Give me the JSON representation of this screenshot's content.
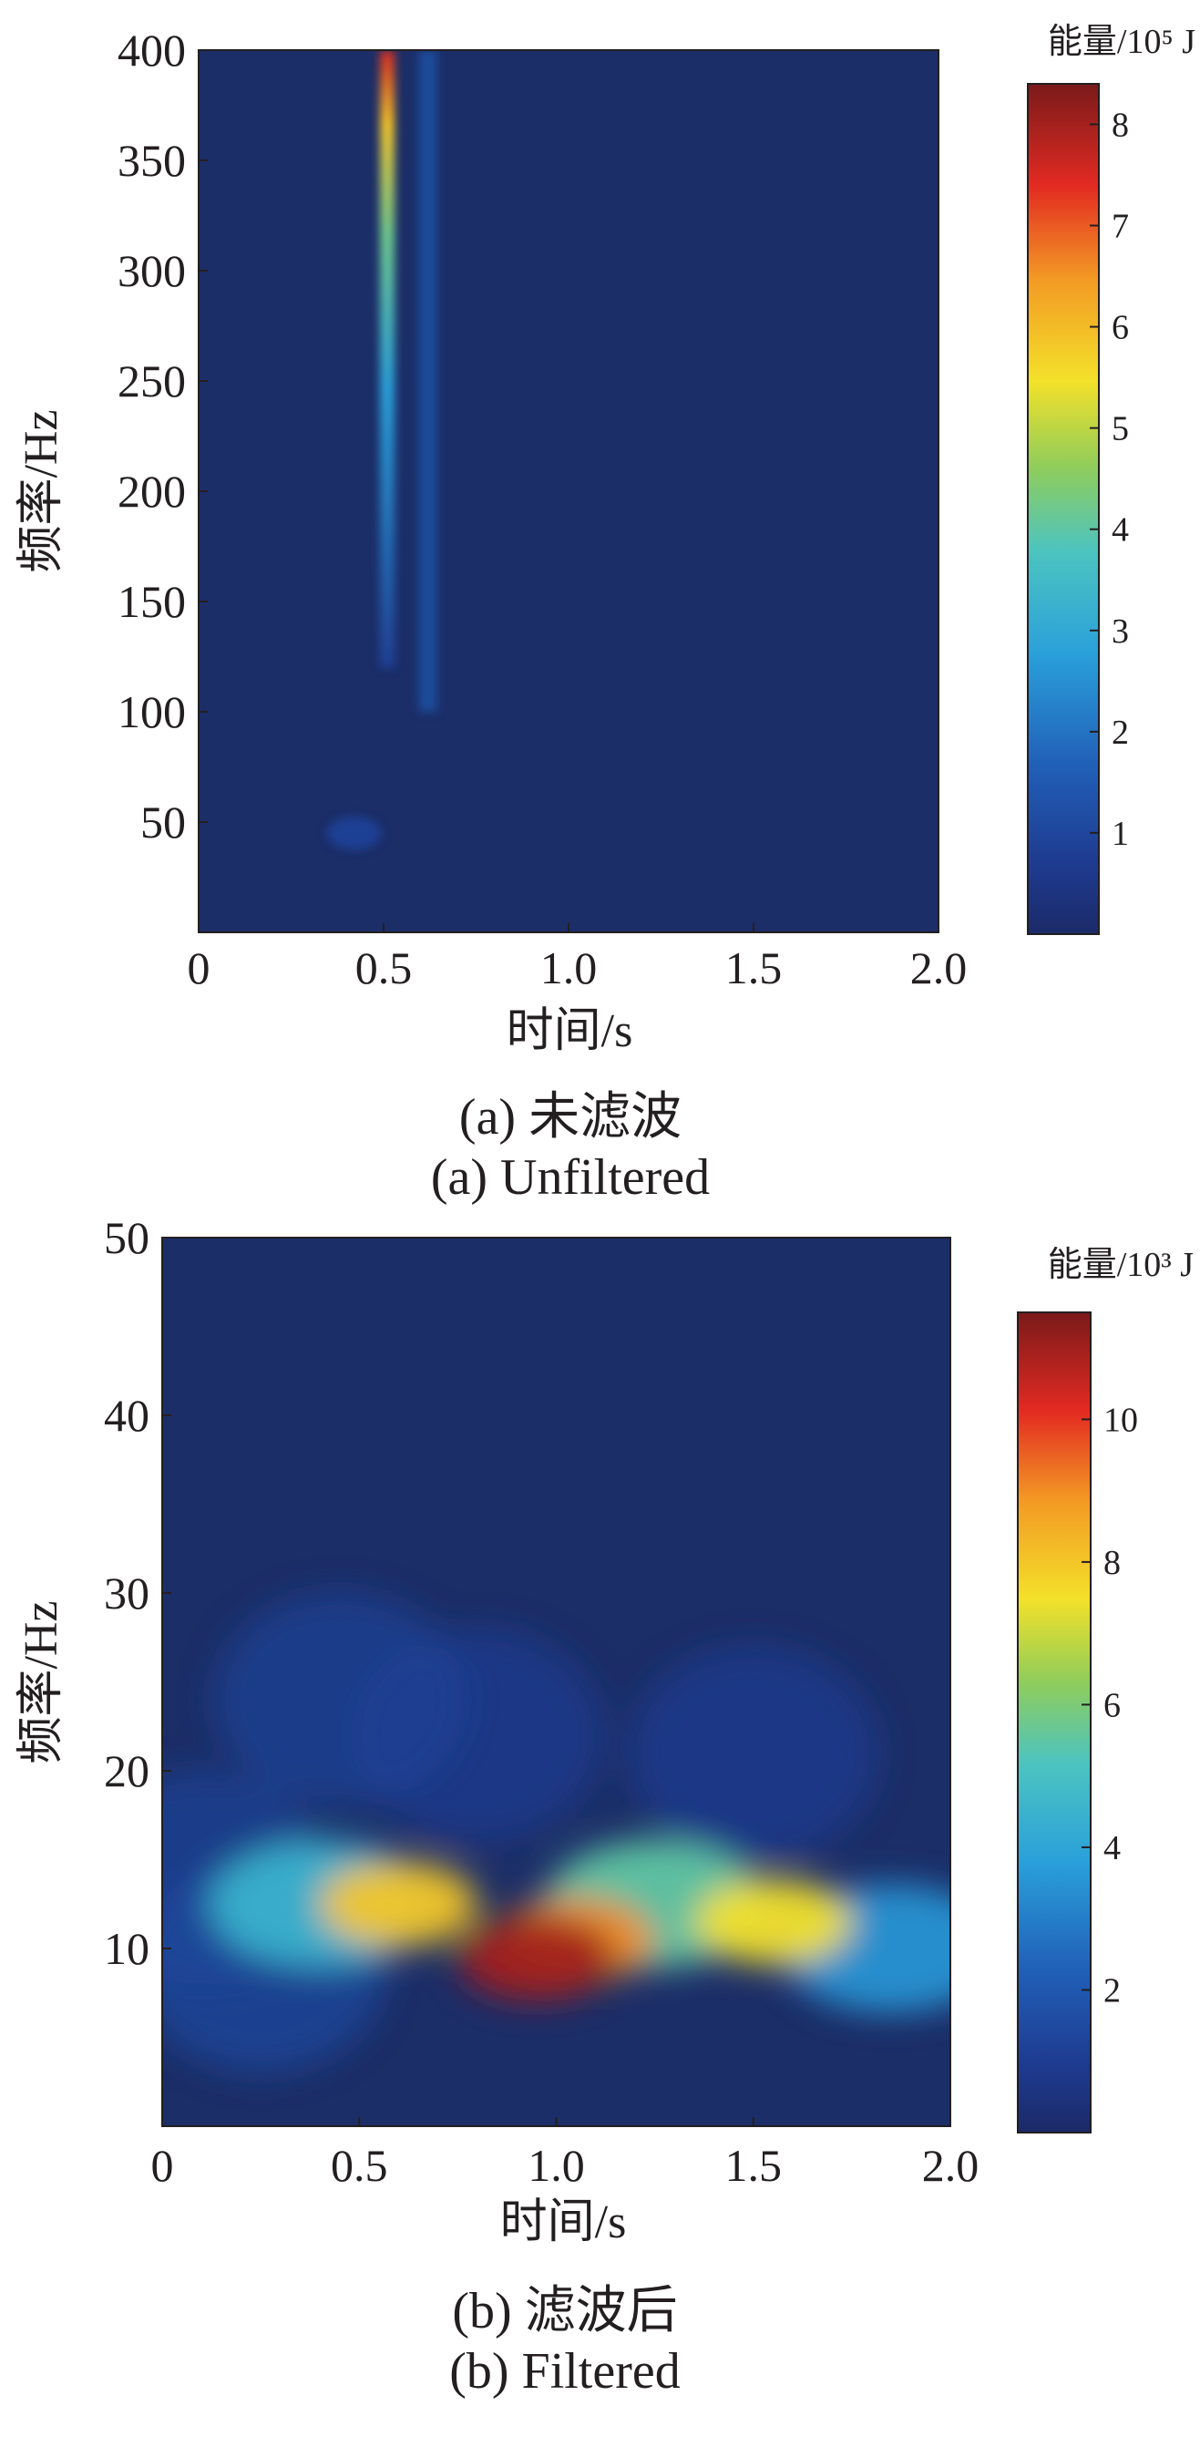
{
  "chart_data": [
    {
      "type": "heatmap",
      "xlabel": "时间/s",
      "ylabel": "频率/Hz",
      "xlim": [
        0,
        2.0
      ],
      "ylim": [
        0,
        400
      ],
      "x_ticks": [
        "0",
        "0.5",
        "1.0",
        "1.5",
        "2.0"
      ],
      "y_ticks": [
        "50",
        "100",
        "150",
        "200",
        "250",
        "300",
        "350",
        "400"
      ],
      "colorbar": {
        "label": "能量/10⁵ J",
        "range": [
          0,
          8.4
        ],
        "ticks": [
          "1",
          "2",
          "3",
          "4",
          "5",
          "6",
          "7",
          "8"
        ]
      },
      "caption_cn": "(a) 未滤波",
      "caption_en": "(a) Unfiltered",
      "features": [
        {
          "t": 0.51,
          "f_min": 120,
          "f_max": 400,
          "peak_energy": 8.4
        },
        {
          "t": 0.62,
          "f_min": 100,
          "f_max": 400,
          "peak_energy": 1.5
        },
        {
          "t": 0.42,
          "f_min": 40,
          "f_max": 50,
          "peak_energy": 0.8
        }
      ]
    },
    {
      "type": "heatmap",
      "xlabel": "时间/s",
      "ylabel": "频率/Hz",
      "xlim": [
        0,
        2.0
      ],
      "ylim": [
        0,
        50
      ],
      "x_ticks": [
        "0",
        "0.5",
        "1.0",
        "1.5",
        "2.0"
      ],
      "y_ticks": [
        "10",
        "20",
        "30",
        "40",
        "50"
      ],
      "colorbar": {
        "label": "能量/10³ J",
        "range": [
          0,
          11.5
        ],
        "ticks": [
          "2",
          "4",
          "6",
          "8",
          "10"
        ]
      },
      "caption_cn": "(b) 滤波后",
      "caption_en": "(b) Filtered",
      "blobs": [
        {
          "t": 0.95,
          "f": 9.5,
          "energy": 11.0
        },
        {
          "t": 1.05,
          "f": 10.5,
          "energy": 9.0
        },
        {
          "t": 0.6,
          "f": 12.5,
          "energy": 8.0
        },
        {
          "t": 1.55,
          "f": 11.5,
          "energy": 7.5
        },
        {
          "t": 1.25,
          "f": 12.5,
          "energy": 5.5
        },
        {
          "t": 0.4,
          "f": 12.5,
          "energy": 4.5
        },
        {
          "t": 1.85,
          "f": 10.0,
          "energy": 3.5
        },
        {
          "t": 0.25,
          "f": 9.0,
          "energy": 1.5
        },
        {
          "t": 0.45,
          "f": 24.0,
          "energy": 1.2
        },
        {
          "t": 0.8,
          "f": 22.0,
          "energy": 1.0
        },
        {
          "t": 1.5,
          "f": 21.0,
          "energy": 1.0
        },
        {
          "t": 0.1,
          "f": 14.0,
          "energy": 1.2
        }
      ]
    }
  ]
}
